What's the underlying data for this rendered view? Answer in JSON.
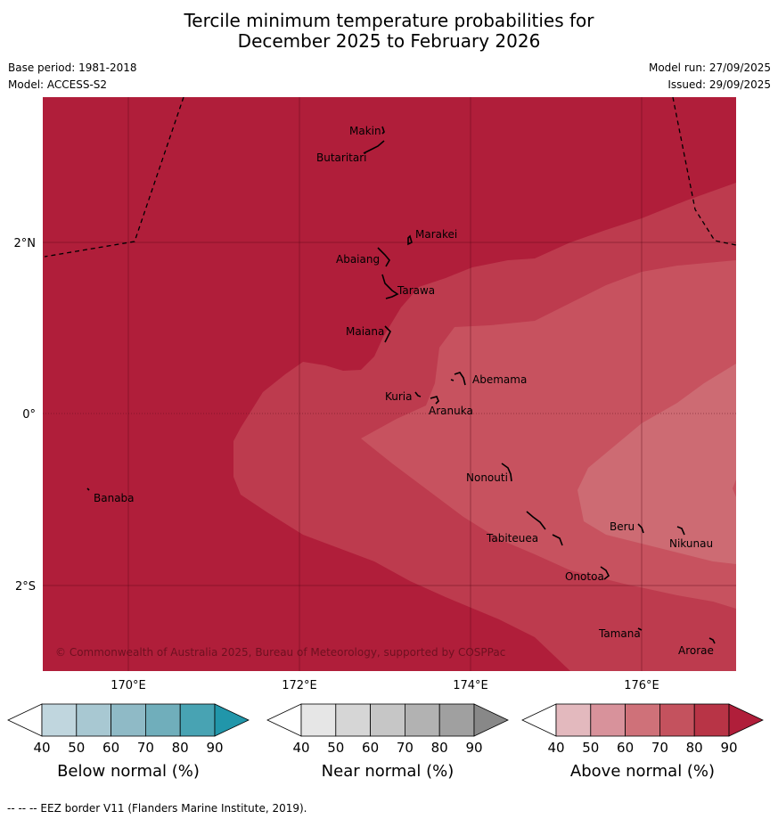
{
  "title": {
    "line1": "Tercile minimum temperature probabilities for",
    "line2": "December 2025 to February 2026"
  },
  "meta": {
    "base_period": "Base period: 1981-2018",
    "model": "Model: ACCESS-S2",
    "model_run": "Model run: 27/09/2025",
    "issued": "Issued: 29/09/2025"
  },
  "map": {
    "latitude_labels": [
      "2°N",
      "0°",
      "2°S"
    ],
    "longitude_labels": [
      "170°E",
      "172°E",
      "174°E",
      "176°E"
    ],
    "islands": [
      "Makin",
      "Butaritari",
      "Marakei",
      "Abaiang",
      "Tarawa",
      "Maiana",
      "Abemama",
      "Kuria",
      "Aranuka",
      "Nonouti",
      "Banaba",
      "Beru",
      "Nikunau",
      "Tabiteuea",
      "Onotoa",
      "Tamana",
      "Arorae"
    ],
    "copyright": "© Commonwealth of Australia 2025, Bureau of Meteorology, supported by COSPPac",
    "category": "Above normal",
    "probability_bands_percent": [
      90,
      80,
      70,
      60
    ],
    "colors": {
      "90": "#b01e3a",
      "80": "#bd3b4e",
      "70": "#c7525f",
      "60": "#cd6b73"
    }
  },
  "legends": [
    {
      "label": "Below normal (%)",
      "ticks": [
        "40",
        "50",
        "60",
        "70",
        "80",
        "90"
      ],
      "colors": [
        "#c0d6de",
        "#a8c8d2",
        "#8fbac6",
        "#70aebb",
        "#48a3b3",
        "#2196aa"
      ]
    },
    {
      "label": "Near normal (%)",
      "ticks": [
        "40",
        "50",
        "60",
        "70",
        "80",
        "90"
      ],
      "colors": [
        "#e6e6e6",
        "#d6d6d6",
        "#c6c6c6",
        "#b2b2b2",
        "#a0a0a0",
        "#888888"
      ]
    },
    {
      "label": "Above normal (%)",
      "ticks": [
        "40",
        "50",
        "60",
        "70",
        "80",
        "90"
      ],
      "colors": [
        "#e3b9be",
        "#d8929b",
        "#cf7179",
        "#c4525e",
        "#b83446",
        "#b01e3a"
      ]
    }
  ],
  "footnote": "--  --  -- EEZ border V11 (Flanders Marine Institute, 2019)."
}
